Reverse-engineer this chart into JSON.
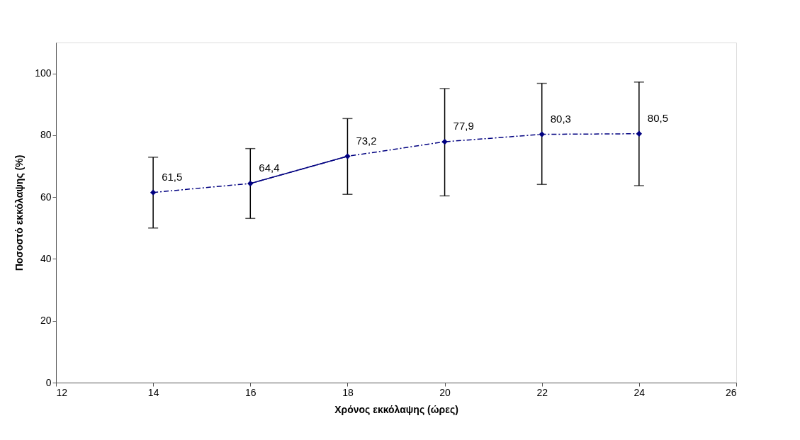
{
  "chart_data": {
    "type": "line",
    "xlabel": "Χρόνος εκκόλαψης (ώρες)",
    "ylabel": "Ποσοστό εκκόλαψης (%)",
    "x": [
      14,
      16,
      18,
      20,
      22,
      24
    ],
    "xlim": [
      12,
      26
    ],
    "xticks": [
      12,
      14,
      16,
      18,
      20,
      22,
      24,
      26
    ],
    "ylim": [
      0,
      110
    ],
    "yticks": [
      0,
      20,
      40,
      60,
      80,
      100
    ],
    "grid": false,
    "series": [
      {
        "color": "#000080",
        "values": [
          61.5,
          64.4,
          73.2,
          77.9,
          80.3,
          80.5
        ],
        "marker": "diamond",
        "line_style": "dashed",
        "value_labels": [
          "61,5",
          "64,4",
          "73,2",
          "77,9",
          "80,3",
          "80,5"
        ],
        "errors": [
          [
            50.0,
            72.9
          ],
          [
            53.1,
            75.7
          ],
          [
            60.9,
            85.4
          ],
          [
            60.4,
            95.1
          ],
          [
            64.1,
            96.8
          ],
          [
            63.7,
            97.2
          ]
        ]
      },
      {
        "type": "line",
        "color": "#000080",
        "x": [
          16,
          18
        ],
        "values": [
          64.4,
          73.2
        ],
        "marker": "none",
        "line_style": "solid"
      }
    ]
  }
}
